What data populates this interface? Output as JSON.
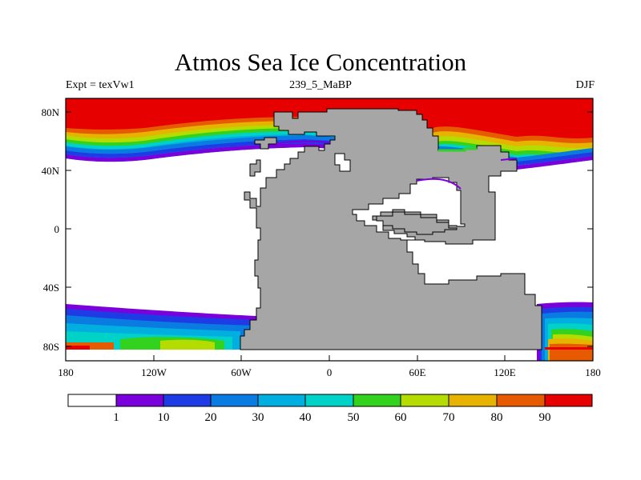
{
  "title": "Atmos Sea Ice Concentration",
  "subtitle_left": "Expt = texVw1",
  "subtitle_center": "239_5_MaBP",
  "subtitle_right": "DJF",
  "x_axis": {
    "ticks": [
      "180",
      "120W",
      "60W",
      "0",
      "60E",
      "120E",
      "180"
    ]
  },
  "y_axis": {
    "ticks": [
      "80N",
      "40N",
      "0",
      "40S",
      "80S"
    ]
  },
  "colorbar": {
    "colors": [
      "#ffffff",
      "#7a00dc",
      "#1e3ce6",
      "#0a7be0",
      "#00aee0",
      "#00d2c8",
      "#32d21e",
      "#b4dc00",
      "#e6b400",
      "#e65a00",
      "#e60000"
    ],
    "labels": [
      "1",
      "10",
      "20",
      "30",
      "40",
      "50",
      "60",
      "70",
      "80",
      "90"
    ]
  },
  "colors": {
    "land": "#a6a6a6",
    "ice_max": "#e60000"
  }
}
